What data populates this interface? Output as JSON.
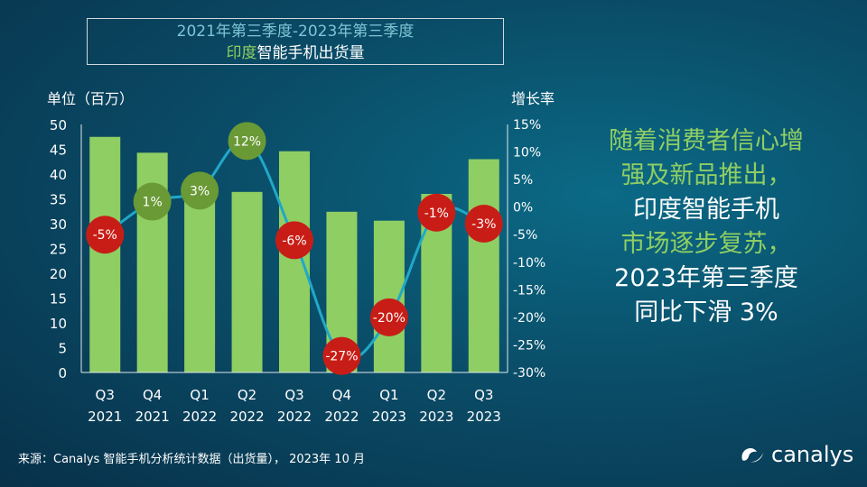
{
  "title": {
    "line1": "2021年第三季度-2023年第三季度",
    "line2_highlight": "印度",
    "line2_rest": "智能手机出货量"
  },
  "left_axis_title": "单位（百万）",
  "right_axis_title": "增长率",
  "right_text": {
    "l1": "随着消费者信心增",
    "l2": "强及新品推出，",
    "l3": "印度智能手机",
    "l4": "市场逐步复苏，",
    "l5": "2023年第三季度",
    "l6": "同比下滑 3%"
  },
  "footer": "来源：Canalys 智能手机分析统计数据（出货量），  2023年 10 月",
  "logo": {
    "text": "canalys",
    "icon": "canalys-logo-icon"
  },
  "colors": {
    "bar": "#8fce63",
    "line": "#21a8c8",
    "bubble_positive": "#6a9a36",
    "bubble_negative": "#c81d16",
    "accent_text": "#8fce63"
  },
  "chart_data": {
    "type": "bar",
    "categories": [
      "Q3 2021",
      "Q4 2021",
      "Q1 2022",
      "Q2 2022",
      "Q3 2022",
      "Q4 2022",
      "Q1 2023",
      "Q2 2023",
      "Q3 2023"
    ],
    "category_lines": [
      [
        "Q3",
        "2021"
      ],
      [
        "Q4",
        "2021"
      ],
      [
        "Q1",
        "2022"
      ],
      [
        "Q2",
        "2022"
      ],
      [
        "Q3",
        "2022"
      ],
      [
        "Q4",
        "2022"
      ],
      [
        "Q1",
        "2023"
      ],
      [
        "Q2",
        "2023"
      ],
      [
        "Q3",
        "2023"
      ]
    ],
    "series": [
      {
        "values": [
          47.5,
          44.3,
          37.8,
          36.4,
          44.6,
          32.4,
          30.6,
          36.0,
          43.0
        ]
      },
      {
        "values": [
          -5,
          1,
          3,
          12,
          -6,
          -27,
          -20,
          -1,
          -3
        ],
        "labels": [
          "-5%",
          "1%",
          "3%",
          "12%",
          "-6%",
          "-27%",
          "-20%",
          "-1%",
          "-3%"
        ]
      }
    ],
    "ylim": [
      0,
      50
    ],
    "yticks": [
      "0",
      "5",
      "10",
      "15",
      "20",
      "25",
      "30",
      "35",
      "40",
      "45",
      "50"
    ],
    "y2lim": [
      -30,
      15
    ],
    "y2ticks": [
      "-30%",
      "-25%",
      "-20%",
      "-15%",
      "-10%",
      "-5%",
      "0%",
      "5%",
      "10%",
      "15%"
    ],
    "ylabel": "单位（百万）",
    "y2label": "增长率",
    "grid": false,
    "legend": "none"
  }
}
